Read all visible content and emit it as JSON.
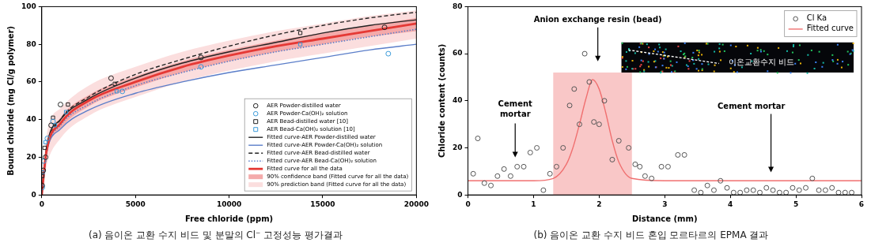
{
  "chart_data": [
    {
      "type": "scatter",
      "caption": "(a) 음이온 교환 수지 비드 및 분말의 Cl⁻ 고정성능 평가결과",
      "x_label": "Free chloride (ppm)",
      "y_label": "Bound chloride (mg Cl/g polymer)",
      "xlim": [
        0,
        20000
      ],
      "xticks": [
        0,
        5000,
        10000,
        15000,
        20000
      ],
      "ylim": [
        0,
        100
      ],
      "yticks": [
        0,
        20,
        40,
        60,
        80,
        100
      ],
      "grid": false,
      "legend": "lower right",
      "series": [
        {
          "name": "AER Powder-distilled water",
          "type": "scatter",
          "marker": "circle",
          "color": "#222222",
          "x": [
            20,
            80,
            200,
            500,
            1000,
            3700,
            8500,
            18300
          ],
          "values": [
            5,
            13,
            20,
            37,
            48,
            62,
            73,
            89
          ]
        },
        {
          "name": "AER Powder-Ca(OH)₂ solution",
          "type": "scatter",
          "marker": "circle",
          "color": "#3a9ad9",
          "x": [
            30,
            100,
            300,
            600,
            4300,
            8500,
            18500
          ],
          "values": [
            4,
            18,
            30,
            39,
            55,
            68,
            75
          ]
        },
        {
          "name": "AER Bead-distilled water [10]",
          "type": "scatter",
          "marker": "square",
          "color": "#222222",
          "x": [
            30,
            150,
            600,
            1400,
            3900,
            13800
          ],
          "values": [
            10,
            25,
            41,
            48,
            59,
            86
          ]
        },
        {
          "name": "AER Bead-Ca(OH)₂ solution [10]",
          "type": "scatter",
          "marker": "square",
          "color": "#3a9ad9",
          "x": [
            50,
            200,
            700,
            1300,
            4000,
            13800
          ],
          "values": [
            12,
            28,
            37,
            44,
            55,
            80
          ]
        },
        {
          "name": "Fitted curve-AER Powder-distilled water",
          "type": "line",
          "line_style": "solid",
          "color": "#222222",
          "x": [
            0,
            250,
            1000,
            2500,
            5000,
            7500,
            10000,
            12500,
            15000,
            17500,
            20000
          ],
          "values": [
            0,
            25,
            40,
            51,
            62,
            70,
            76,
            81,
            86,
            90,
            93
          ]
        },
        {
          "name": "Fitted curve-AER Powder-Ca(OH)₂ solution",
          "type": "line",
          "line_style": "solid",
          "color": "#5b7ec9",
          "x": [
            0,
            250,
            1000,
            2500,
            5000,
            7500,
            10000,
            12500,
            15000,
            17500,
            20000
          ],
          "values": [
            0,
            22,
            35,
            45,
            54,
            60,
            65,
            69,
            73,
            77,
            80
          ]
        },
        {
          "name": "Fitted curve-AER Bead-distilled water",
          "type": "line",
          "line_style": "dashed",
          "color": "#222222",
          "x": [
            0,
            250,
            1000,
            2500,
            5000,
            7500,
            10000,
            12500,
            15000,
            17500,
            20000
          ],
          "values": [
            0,
            23,
            40,
            52,
            64,
            72,
            79,
            85,
            90,
            94,
            97
          ]
        },
        {
          "name": "Fitted curve-AER Bead-Ca(OH)₂ solution",
          "type": "line",
          "line_style": "dotted",
          "color": "#5b7ec9",
          "x": [
            0,
            250,
            1000,
            2500,
            5000,
            7500,
            10000,
            12500,
            15000,
            17500,
            20000
          ],
          "values": [
            0,
            22,
            37,
            48,
            58,
            65,
            71,
            76,
            80,
            84,
            88
          ]
        },
        {
          "name": "Fitted curve for all the data",
          "type": "line",
          "line_style": "thick",
          "color": "#e53935",
          "x": [
            0,
            250,
            1000,
            2500,
            5000,
            7500,
            10000,
            12500,
            15000,
            17500,
            20000
          ],
          "values": [
            0,
            23,
            38,
            50,
            60,
            68,
            74,
            79,
            83,
            87,
            91
          ]
        }
      ],
      "bands": [
        {
          "name": "90% confidence band (Fitted curve for all the data)",
          "color": "#f4aaaa",
          "x": [
            0,
            250,
            1000,
            2500,
            5000,
            7500,
            10000,
            12500,
            15000,
            17500,
            20000
          ],
          "lower": [
            0,
            21,
            35,
            47,
            57,
            65,
            71,
            76,
            80,
            84,
            87
          ],
          "upper": [
            0,
            25,
            41,
            53,
            63,
            71,
            77,
            82,
            86,
            90,
            94
          ]
        },
        {
          "name": "90% prediction band (Fitted curve for all the data)",
          "color": "#fbdede",
          "x": [
            0,
            250,
            1000,
            2500,
            5000,
            7500,
            10000,
            12500,
            15000,
            17500,
            20000
          ],
          "lower": [
            0,
            15,
            30,
            42,
            52,
            60,
            66,
            71,
            75,
            79,
            83
          ],
          "upper": [
            0,
            31,
            46,
            58,
            68,
            76,
            82,
            87,
            91,
            95,
            98
          ]
        }
      ]
    },
    {
      "type": "scatter",
      "caption": "(b) 음이온 교환 수지 비드 혼입 모르타르의 EPMA 결과",
      "x_label": "Distance (mm)",
      "y_label": "Chloride content (counts)",
      "xlim": [
        0,
        6
      ],
      "xticks": [
        0,
        1,
        2,
        3,
        4,
        5,
        6
      ],
      "ylim": [
        0,
        80
      ],
      "yticks": [
        0,
        20,
        40,
        60,
        80
      ],
      "grid": false,
      "legend": "upper right",
      "series": [
        {
          "name": "Cl Ka",
          "type": "scatter",
          "marker": "circle",
          "color": "#555555",
          "x": [
            0.08,
            0.15,
            0.25,
            0.35,
            0.45,
            0.55,
            0.65,
            0.75,
            0.85,
            0.95,
            1.05,
            1.15,
            1.25,
            1.35,
            1.45,
            1.55,
            1.62,
            1.7,
            1.78,
            1.85,
            1.92,
            2.0,
            2.08,
            2.2,
            2.3,
            2.45,
            2.55,
            2.62,
            2.7,
            2.8,
            2.95,
            3.05,
            3.2,
            3.3,
            3.45,
            3.55,
            3.65,
            3.75,
            3.85,
            3.95,
            4.05,
            4.15,
            4.25,
            4.35,
            4.45,
            4.55,
            4.65,
            4.75,
            4.85,
            4.95,
            5.05,
            5.15,
            5.25,
            5.35,
            5.45,
            5.55,
            5.65,
            5.75,
            5.85
          ],
          "values": [
            9,
            24,
            5,
            4,
            8,
            11,
            8,
            12,
            12,
            18,
            20,
            2,
            9,
            12,
            20,
            38,
            45,
            30,
            60,
            48,
            31,
            30,
            40,
            15,
            23,
            20,
            13,
            12,
            8,
            7,
            12,
            12,
            17,
            17,
            2,
            1,
            4,
            2,
            6,
            3,
            1,
            1,
            2,
            2,
            1,
            3,
            2,
            1,
            1,
            3,
            2,
            3,
            7,
            2,
            2,
            3,
            1,
            1,
            1
          ]
        },
        {
          "name": "Fitted curve",
          "type": "line",
          "line_style": "solid",
          "color": "#f07070",
          "x": [
            0,
            1.0,
            1.3,
            1.5,
            1.6,
            1.7,
            1.8,
            1.9,
            2.0,
            2.1,
            2.2,
            2.3,
            2.5,
            3.0,
            6.0
          ],
          "values": [
            6,
            6,
            7,
            13,
            20,
            30,
            41,
            49,
            45,
            35,
            23,
            14,
            7,
            6,
            6
          ]
        }
      ],
      "shaded_region": {
        "xlim": [
          1.3,
          2.5
        ],
        "ylim": [
          0,
          52
        ],
        "color": "#f7b4b4"
      },
      "annotations": [
        {
          "text": "Anion exchange resin (bead)"
        },
        {
          "text": "Cement mortar"
        },
        {
          "text": "Cement mortar"
        }
      ],
      "inset_label": "이온교환수지 비드"
    }
  ]
}
